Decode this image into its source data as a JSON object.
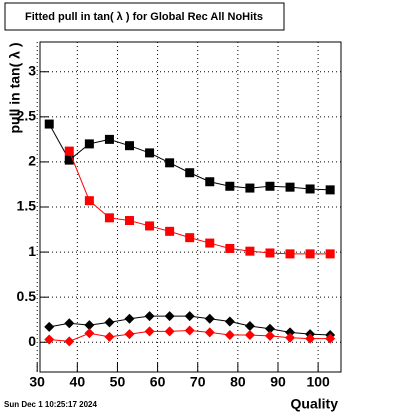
{
  "chart_data": {
    "type": "scatter",
    "title": "Fitted pull in tan( λ ) for Global Rec All NoHits",
    "y_label": "pull in tan( λ )",
    "x_label": "Quality",
    "annotation": "Sun Dec  1 10:25:17 2024",
    "x": [
      33,
      38,
      43,
      48,
      53,
      58,
      63,
      68,
      73,
      78,
      83,
      88,
      93,
      98,
      103
    ],
    "series": [
      {
        "color": "#000000",
        "marker": "square",
        "values": [
          2.42,
          2.02,
          2.2,
          2.25,
          2.18,
          2.1,
          1.99,
          1.88,
          1.78,
          1.73,
          1.71,
          1.73,
          1.72,
          1.7,
          1.69
        ]
      },
      {
        "color": "#ff0000",
        "marker": "square",
        "values": [
          null,
          2.12,
          1.57,
          1.38,
          1.35,
          1.29,
          1.23,
          1.16,
          1.1,
          1.04,
          1.01,
          0.99,
          0.98,
          0.98,
          0.98
        ]
      },
      {
        "color": "#000000",
        "marker": "diamond",
        "values": [
          0.17,
          0.21,
          0.19,
          0.22,
          0.26,
          0.29,
          0.29,
          0.29,
          0.26,
          0.23,
          0.18,
          0.15,
          0.11,
          0.09,
          0.08
        ]
      },
      {
        "color": "#ff0000",
        "marker": "diamond",
        "values": [
          0.03,
          0.01,
          0.1,
          0.06,
          0.09,
          0.12,
          0.12,
          0.13,
          0.11,
          0.08,
          0.08,
          0.07,
          0.05,
          0.04,
          0.04
        ]
      }
    ],
    "xlim": [
      30.7,
      105.7
    ],
    "xticks": [
      30,
      40,
      50,
      60,
      70,
      80,
      90,
      100
    ],
    "ylim": [
      -0.33,
      3.33
    ],
    "yticks": [
      0,
      0.5,
      1,
      1.5,
      2,
      2.5,
      3
    ],
    "grid": true
  }
}
